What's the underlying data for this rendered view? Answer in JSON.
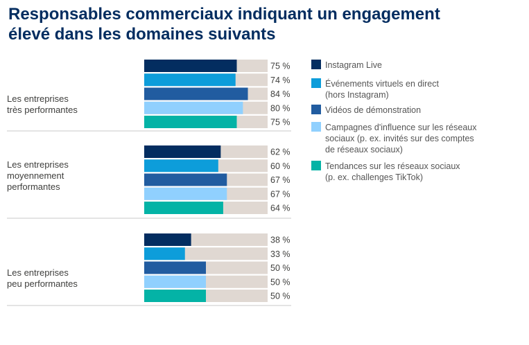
{
  "title_lines": [
    "Responsables commerciaux indiquant un engagement",
    "élevé dans les domaines suivants"
  ],
  "chart_data": {
    "type": "bar",
    "orientation": "horizontal",
    "title": "Responsables commerciaux indiquant un engagement élevé dans les domaines suivants",
    "xlim": [
      0,
      100
    ],
    "value_suffix": " %",
    "track_color": "#e0d8d2",
    "legend_position": "right",
    "series": [
      {
        "name": "Instagram Live",
        "name_lines": [
          "Instagram Live"
        ],
        "color": "#032d60"
      },
      {
        "name": "Événements virtuels en direct (hors Instagram)",
        "name_lines": [
          "Événements virtuels en direct",
          "(hors Instagram)"
        ],
        "color": "#0d9dda"
      },
      {
        "name": "Vidéos de démonstration",
        "name_lines": [
          "Vidéos de démonstration"
        ],
        "color": "#215ca0"
      },
      {
        "name": "Campagnes d'influence sur les réseaux sociaux (p. ex. invités sur des comptes de réseaux sociaux)",
        "name_lines": [
          "Campagnes d'influence sur les réseaux",
          "sociaux (p. ex. invités sur des comptes",
          "de réseaux sociaux)"
        ],
        "color": "#90d0fe"
      },
      {
        "name": "Tendances sur les réseaux sociaux (p. ex. challenges TikTok)",
        "name_lines": [
          "Tendances sur les réseaux sociaux",
          "(p. ex. challenges TikTok)"
        ],
        "color": "#04b3a6"
      }
    ],
    "groups": [
      {
        "label": "Les entreprises très performantes",
        "label_lines": [
          "Les entreprises",
          "très performantes"
        ],
        "values": [
          75,
          74,
          84,
          80,
          75
        ]
      },
      {
        "label": "Les entreprises moyennement performantes",
        "label_lines": [
          "Les entreprises",
          "moyennement",
          "performantes"
        ],
        "values": [
          62,
          60,
          67,
          67,
          64
        ]
      },
      {
        "label": "Les entreprises peu performantes",
        "label_lines": [
          "Les entreprises",
          "peu performantes"
        ],
        "values": [
          38,
          33,
          50,
          50,
          50
        ]
      }
    ]
  }
}
